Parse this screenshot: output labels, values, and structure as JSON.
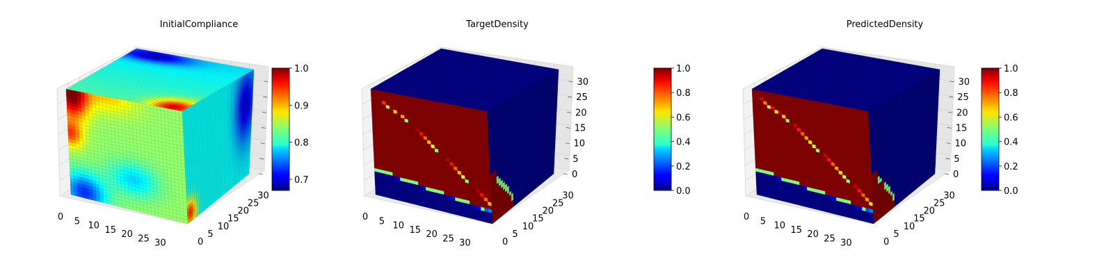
{
  "figure": {
    "colormap": "jet",
    "colors": {
      "pane_light": "#f2f2f2",
      "pane_mid": "#e6e6e6",
      "grid": "#d0d0d0",
      "dark_red": "#800000",
      "dark_blue": "#00007f"
    }
  },
  "chart_data": [
    {
      "type": "heatmap",
      "subtype": "3d-voxel-cube",
      "title": "InitialCompliance",
      "x_ticks": [
        "0",
        "5",
        "10",
        "15",
        "20",
        "25",
        "30"
      ],
      "y_ticks": [
        "0",
        "5",
        "10",
        "15",
        "20",
        "25",
        "30"
      ],
      "z_ticks": [],
      "grid_size": 32,
      "colorbar": {
        "ticks": [
          "0.7",
          "0.8",
          "0.9",
          "1.0"
        ],
        "range": [
          0.67,
          1.0
        ]
      },
      "value_range": [
        0.67,
        1.0
      ]
    },
    {
      "type": "heatmap",
      "subtype": "3d-voxel-cube",
      "title": "TargetDensity",
      "x_ticks": [
        "0",
        "5",
        "10",
        "15",
        "20",
        "25",
        "30"
      ],
      "y_ticks": [
        "0",
        "5",
        "10",
        "15",
        "20",
        "25",
        "30"
      ],
      "z_ticks": [
        "0",
        "5",
        "10",
        "15",
        "20",
        "25",
        "30"
      ],
      "grid_size": 32,
      "colorbar": {
        "ticks": [
          "0.0",
          "0.2",
          "0.4",
          "0.6",
          "0.8",
          "1.0"
        ],
        "range": [
          0.0,
          1.0
        ]
      },
      "value_range": [
        0.0,
        1.0
      ]
    },
    {
      "type": "heatmap",
      "subtype": "3d-voxel-cube",
      "title": "PredictedDensity",
      "x_ticks": [
        "0",
        "5",
        "10",
        "15",
        "20",
        "25",
        "30"
      ],
      "y_ticks": [
        "0",
        "5",
        "10",
        "15",
        "20",
        "25",
        "30"
      ],
      "z_ticks": [
        "0",
        "5",
        "10",
        "15",
        "20",
        "25",
        "30"
      ],
      "grid_size": 32,
      "colorbar": {
        "ticks": [
          "0.0",
          "0.2",
          "0.4",
          "0.6",
          "0.8",
          "1.0"
        ],
        "range": [
          0.0,
          1.0
        ]
      },
      "value_range": [
        0.0,
        1.0
      ]
    }
  ]
}
